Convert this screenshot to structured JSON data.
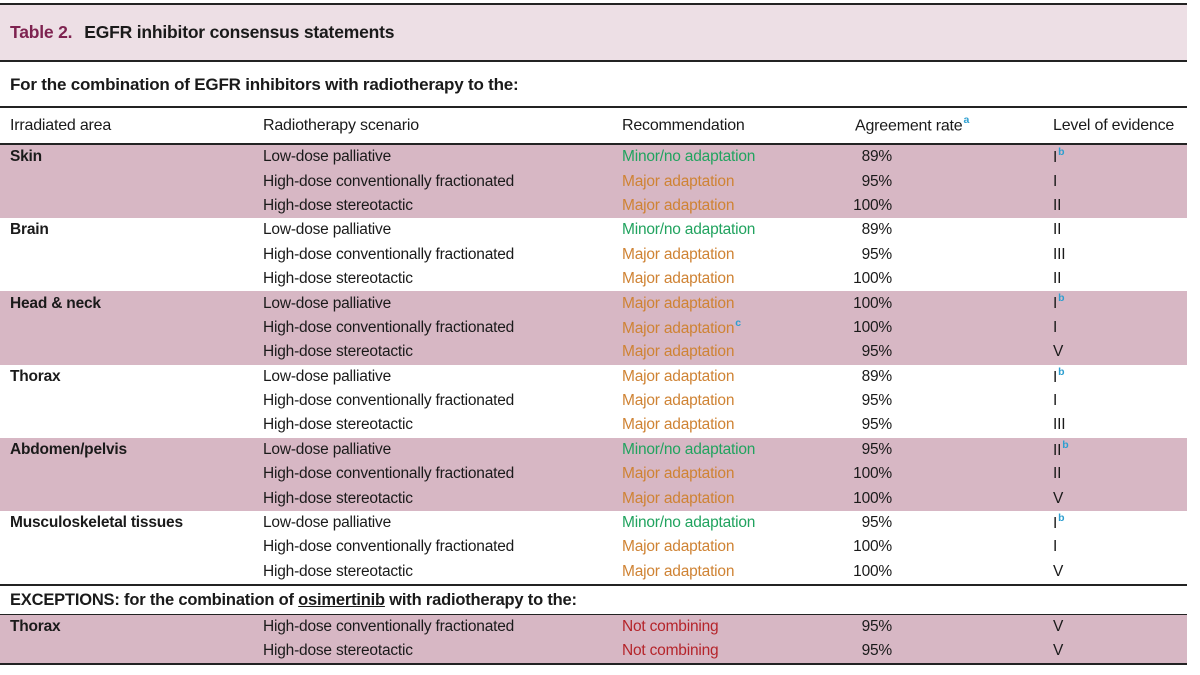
{
  "colors": {
    "title_bar_pink": "#eddfe5",
    "row_shade_pink": "#d7b7c4",
    "table_label_maroon": "#7e2350",
    "minor_green": "#21a35f",
    "major_orange": "#cf8334",
    "not_combining_red": "#b5242a",
    "superscript_blue": "#2d9fd0",
    "border_dark": "#232323"
  },
  "table": {
    "title_label": "Table 2.",
    "title_text": "EGFR inhibitor consensus statements",
    "section_heading": "For the combination of EGFR inhibitors with radiotherapy to the:",
    "columns": {
      "irradiated_area": "Irradiated area",
      "radiotherapy_scenario": "Radiotherapy scenario",
      "recommendation": "Recommendation",
      "agreement_rate": "Agreement rate",
      "agreement_rate_sup": "a",
      "level_of_evidence": "Level of evidence"
    },
    "groups": [
      {
        "area": "Skin",
        "shaded": true,
        "rows": [
          {
            "scenario": "Low-dose palliative",
            "recommendation": "Minor/no adaptation",
            "tone": "minor",
            "rec_sup": "",
            "agreement": "89%",
            "evidence": "I",
            "evidence_sup": "b"
          },
          {
            "scenario": "High-dose conventionally fractionated",
            "recommendation": "Major adaptation",
            "tone": "major",
            "rec_sup": "",
            "agreement": "95%",
            "evidence": "I",
            "evidence_sup": ""
          },
          {
            "scenario": "High-dose stereotactic",
            "recommendation": "Major adaptation",
            "tone": "major",
            "rec_sup": "",
            "agreement": "100%",
            "evidence": "II",
            "evidence_sup": ""
          }
        ]
      },
      {
        "area": "Brain",
        "shaded": false,
        "rows": [
          {
            "scenario": "Low-dose palliative",
            "recommendation": "Minor/no adaptation",
            "tone": "minor",
            "rec_sup": "",
            "agreement": "89%",
            "evidence": "II",
            "evidence_sup": ""
          },
          {
            "scenario": "High-dose conventionally fractionated",
            "recommendation": "Major adaptation",
            "tone": "major",
            "rec_sup": "",
            "agreement": "95%",
            "evidence": "III",
            "evidence_sup": ""
          },
          {
            "scenario": "High-dose stereotactic",
            "recommendation": "Major adaptation",
            "tone": "major",
            "rec_sup": "",
            "agreement": "100%",
            "evidence": "II",
            "evidence_sup": ""
          }
        ]
      },
      {
        "area": "Head & neck",
        "shaded": true,
        "rows": [
          {
            "scenario": "Low-dose palliative",
            "recommendation": "Major adaptation",
            "tone": "major",
            "rec_sup": "",
            "agreement": "100%",
            "evidence": "I",
            "evidence_sup": "b"
          },
          {
            "scenario": "High-dose conventionally fractionated",
            "recommendation": "Major adaptation",
            "tone": "major",
            "rec_sup": "c",
            "agreement": "100%",
            "evidence": "I",
            "evidence_sup": ""
          },
          {
            "scenario": "High-dose stereotactic",
            "recommendation": "Major adaptation",
            "tone": "major",
            "rec_sup": "",
            "agreement": "95%",
            "evidence": "V",
            "evidence_sup": ""
          }
        ]
      },
      {
        "area": "Thorax",
        "shaded": false,
        "rows": [
          {
            "scenario": "Low-dose palliative",
            "recommendation": "Major adaptation",
            "tone": "major",
            "rec_sup": "",
            "agreement": "89%",
            "evidence": "I",
            "evidence_sup": "b"
          },
          {
            "scenario": "High-dose conventionally fractionated",
            "recommendation": "Major adaptation",
            "tone": "major",
            "rec_sup": "",
            "agreement": "95%",
            "evidence": "I",
            "evidence_sup": ""
          },
          {
            "scenario": "High-dose stereotactic",
            "recommendation": "Major adaptation",
            "tone": "major",
            "rec_sup": "",
            "agreement": "95%",
            "evidence": "III",
            "evidence_sup": ""
          }
        ]
      },
      {
        "area": "Abdomen/pelvis",
        "shaded": true,
        "rows": [
          {
            "scenario": "Low-dose palliative",
            "recommendation": "Minor/no adaptation",
            "tone": "minor",
            "rec_sup": "",
            "agreement": "95%",
            "evidence": "II",
            "evidence_sup": "b"
          },
          {
            "scenario": "High-dose conventionally fractionated",
            "recommendation": "Major adaptation",
            "tone": "major",
            "rec_sup": "",
            "agreement": "100%",
            "evidence": "II",
            "evidence_sup": ""
          },
          {
            "scenario": "High-dose stereotactic",
            "recommendation": "Major adaptation",
            "tone": "major",
            "rec_sup": "",
            "agreement": "100%",
            "evidence": "V",
            "evidence_sup": ""
          }
        ]
      },
      {
        "area": "Musculoskeletal tissues",
        "shaded": false,
        "rows": [
          {
            "scenario": "Low-dose palliative",
            "recommendation": "Minor/no adaptation",
            "tone": "minor",
            "rec_sup": "",
            "agreement": "95%",
            "evidence": "I",
            "evidence_sup": "b"
          },
          {
            "scenario": "High-dose conventionally fractionated",
            "recommendation": "Major adaptation",
            "tone": "major",
            "rec_sup": "",
            "agreement": "100%",
            "evidence": "I",
            "evidence_sup": ""
          },
          {
            "scenario": "High-dose stereotactic",
            "recommendation": "Major adaptation",
            "tone": "major",
            "rec_sup": "",
            "agreement": "100%",
            "evidence": "V",
            "evidence_sup": ""
          }
        ]
      }
    ],
    "exceptions": {
      "heading_prefix": "EXCEPTIONS: for the combination of ",
      "drug": "osimertinib",
      "heading_suffix": " with radiotherapy to the:",
      "groups": [
        {
          "area": "Thorax",
          "shaded": true,
          "rows": [
            {
              "scenario": "High-dose conventionally fractionated",
              "recommendation": "Not combining",
              "tone": "not",
              "rec_sup": "",
              "agreement": "95%",
              "evidence": "V",
              "evidence_sup": ""
            },
            {
              "scenario": "High-dose stereotactic",
              "recommendation": "Not combining",
              "tone": "not",
              "rec_sup": "",
              "agreement": "95%",
              "evidence": "V",
              "evidence_sup": ""
            }
          ]
        }
      ]
    }
  }
}
